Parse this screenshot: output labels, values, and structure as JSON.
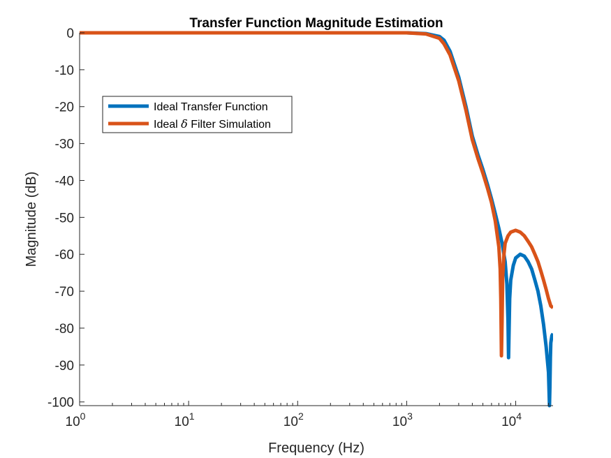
{
  "chart_data": {
    "type": "line",
    "title": "Transfer Function Magnitude Estimation",
    "xlabel": "Frequency (Hz)",
    "ylabel": "Magnitude (dB)",
    "xscale": "log",
    "xlim": [
      1,
      22000
    ],
    "ylim": [
      -101,
      0
    ],
    "grid": false,
    "legend_placement": "top-left",
    "x_ticks": [
      {
        "base": "10",
        "exp": "0",
        "value": 1
      },
      {
        "base": "10",
        "exp": "1",
        "value": 10
      },
      {
        "base": "10",
        "exp": "2",
        "value": 100
      },
      {
        "base": "10",
        "exp": "3",
        "value": 1000
      },
      {
        "base": "10",
        "exp": "4",
        "value": 10000
      }
    ],
    "y_ticks": [
      0,
      -10,
      -20,
      -30,
      -40,
      -50,
      -60,
      -70,
      -80,
      -90,
      -100
    ],
    "series": [
      {
        "name": "Ideal Transfer Function",
        "name_parts": {
          "before": "Ideal Transfer Function",
          "symbol": "",
          "after": ""
        },
        "color": "#0072BD",
        "x": [
          1,
          10,
          100,
          1000,
          1500,
          2000,
          2200,
          2500,
          3000,
          3500,
          4000,
          4500,
          5000,
          5500,
          6000,
          6500,
          7000,
          7500,
          8000,
          8300,
          8500,
          8600,
          8700,
          8800,
          9000,
          9500,
          10000,
          11000,
          12000,
          13000,
          14000,
          15000,
          16000,
          17000,
          18000,
          19000,
          20000,
          20400,
          20600,
          20800,
          21000,
          21500,
          22000
        ],
        "y": [
          0,
          0,
          0,
          0,
          -0.2,
          -1,
          -2,
          -5,
          -12,
          -20,
          -28,
          -33,
          -37,
          -41,
          -45,
          -49,
          -53,
          -57,
          -62,
          -68,
          -78,
          -88,
          -80,
          -72,
          -67,
          -63,
          -61,
          -60,
          -60.5,
          -62,
          -64,
          -67,
          -70,
          -74,
          -79,
          -85,
          -92,
          -101,
          -96,
          -88,
          -84,
          -82,
          -81.5
        ]
      },
      {
        "name": "Ideal δ Filter Simulation",
        "name_parts": {
          "before": "Ideal ",
          "symbol": "δ",
          "after": " Filter Simulation"
        },
        "color": "#D95319",
        "x": [
          1,
          10,
          100,
          1000,
          1500,
          2000,
          2200,
          2500,
          3000,
          3500,
          4000,
          4500,
          5000,
          5500,
          6000,
          6500,
          7000,
          7200,
          7300,
          7400,
          7500,
          7600,
          7800,
          8000,
          8500,
          9000,
          10000,
          11000,
          12000,
          13000,
          14000,
          15000,
          16000,
          17000,
          18000,
          19000,
          20000,
          21000,
          22000
        ],
        "y": [
          0,
          0,
          0,
          0,
          -0.3,
          -1.5,
          -3,
          -6,
          -13,
          -21,
          -29,
          -34,
          -38,
          -42,
          -46,
          -51,
          -58,
          -64,
          -72,
          -87.5,
          -78,
          -66,
          -60,
          -57,
          -55,
          -54,
          -53.5,
          -54,
          -55,
          -56.5,
          -58,
          -60,
          -62,
          -64.5,
          -67,
          -69.5,
          -72,
          -74,
          -74.5
        ]
      }
    ]
  }
}
